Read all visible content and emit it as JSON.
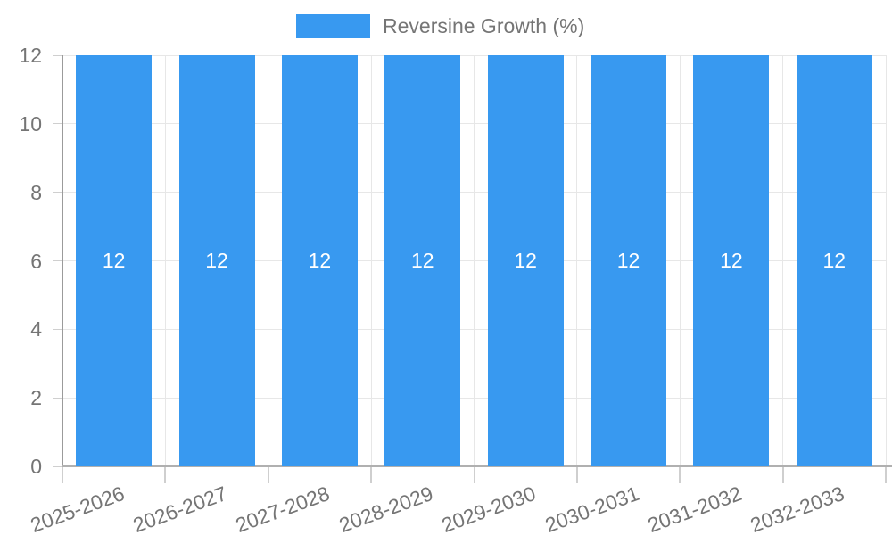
{
  "legend": {
    "label": "Reversine Growth (%)"
  },
  "chart_data": {
    "type": "bar",
    "title": "",
    "categories": [
      "2025-2026",
      "2026-2027",
      "2027-2028",
      "2028-2029",
      "2029-2030",
      "2030-2031",
      "2031-2032",
      "2032-2033"
    ],
    "series": [
      {
        "name": "Reversine Growth (%)",
        "values": [
          12,
          12,
          12,
          12,
          12,
          12,
          12,
          12
        ]
      }
    ],
    "bar_value_labels": [
      "12",
      "12",
      "12",
      "12",
      "12",
      "12",
      "12",
      "12"
    ],
    "xlabel": "",
    "ylabel": "",
    "ylim": [
      0,
      12
    ],
    "yticks": [
      0,
      2,
      4,
      6,
      8,
      10,
      12
    ],
    "grid": true,
    "legend_position": "top"
  },
  "colors": {
    "bar": "#3899f0",
    "label_text": "#757575",
    "bar_label": "#ffffff",
    "grid": "#e7e7e7",
    "tick": "#cfcfcf",
    "y_axis": "#9b9b9b",
    "x_axis": "#b0b0b0",
    "background": "#ffffff"
  }
}
